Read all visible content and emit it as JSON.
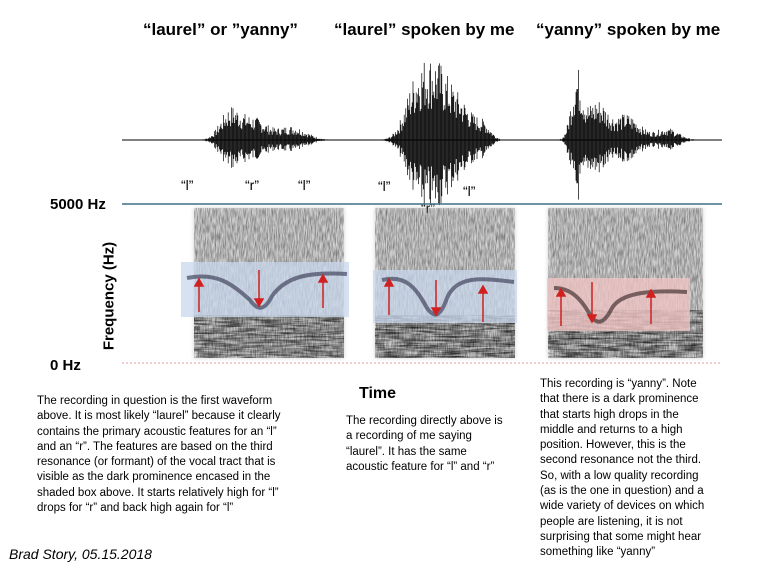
{
  "titles": {
    "left": "“laurel” or ”yanny”",
    "middle": "“laurel” spoken by me",
    "right": "“yanny” spoken by me"
  },
  "markers": {
    "panel1": [
      "“l”",
      "“r”",
      "“l”"
    ],
    "panel2": [
      "“l”",
      "“r”",
      "“l”"
    ]
  },
  "axis": {
    "y_top": "5000 Hz",
    "y_bottom": "0 Hz",
    "y_label": "Frequency (Hz)",
    "x_label": "Time"
  },
  "colors": {
    "highlight_blue": "#c8d8ee",
    "highlight_red": "#f0c4c4",
    "arrow_red": "#d02020",
    "rule_line": "#3b6f86"
  },
  "captions": {
    "left": "The recording in question is the first waveform\nabove. It is most likely “laurel” because it clearly\ncontains the primary acoustic features for an “l”\nand an “r”. The features are based on the third\nresonance (or formant) of the vocal tract  that is\nvisible as the dark prominence encased in the\nshaded box above. It starts relatively high for “l”\ndrops for “r” and back high again for “l”",
    "middle": "The recording directly above is\na recording of me saying\n“laurel”. It has the same\nacoustic feature for “l” and “r”",
    "right": "This recording is “yanny”. Note\nthat there is a dark prominence\nthat starts high drops in the\nmiddle and returns to a high\nposition. However, this is the\nsecond resonance not the third.\nSo, with a low quality recording\n(as is the one in question) and a\nwide variety of devices on which\npeople are listening, it is not\nsurprising that some might hear\nsomething like “yanny”"
  },
  "credit": "Brad Story, 05.15.2018"
}
